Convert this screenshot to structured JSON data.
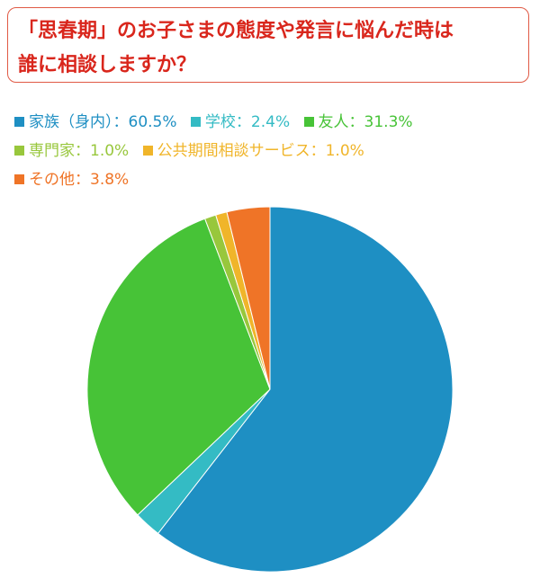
{
  "title_lines": [
    "「思春期」のお子さまの態度や発言に悩んだ時は",
    "誰に相談しますか？"
  ],
  "chart_data": {
    "type": "pie",
    "unit": "%",
    "separator": "：",
    "slices": [
      {
        "label": "家族（身内）",
        "value": 60.5,
        "value_label": "60.5%",
        "color": "#1e8fc3"
      },
      {
        "label": "学校",
        "value": 2.4,
        "value_label": "2.4%",
        "color": "#34bbc4"
      },
      {
        "label": "友人",
        "value": 31.3,
        "value_label": "31.3%",
        "color": "#47c337"
      },
      {
        "label": "専門家",
        "value": 1.0,
        "value_label": "1.0%",
        "color": "#98c73c"
      },
      {
        "label": "公共期間相談サービス",
        "value": 1.0,
        "value_label": "1.0%",
        "color": "#f0b52a"
      },
      {
        "label": "その他",
        "value": 3.8,
        "value_label": "3.8%",
        "color": "#ef7427"
      }
    ],
    "legend_placement": "top",
    "start_angle": "12 o'clock",
    "direction": "clockwise"
  }
}
